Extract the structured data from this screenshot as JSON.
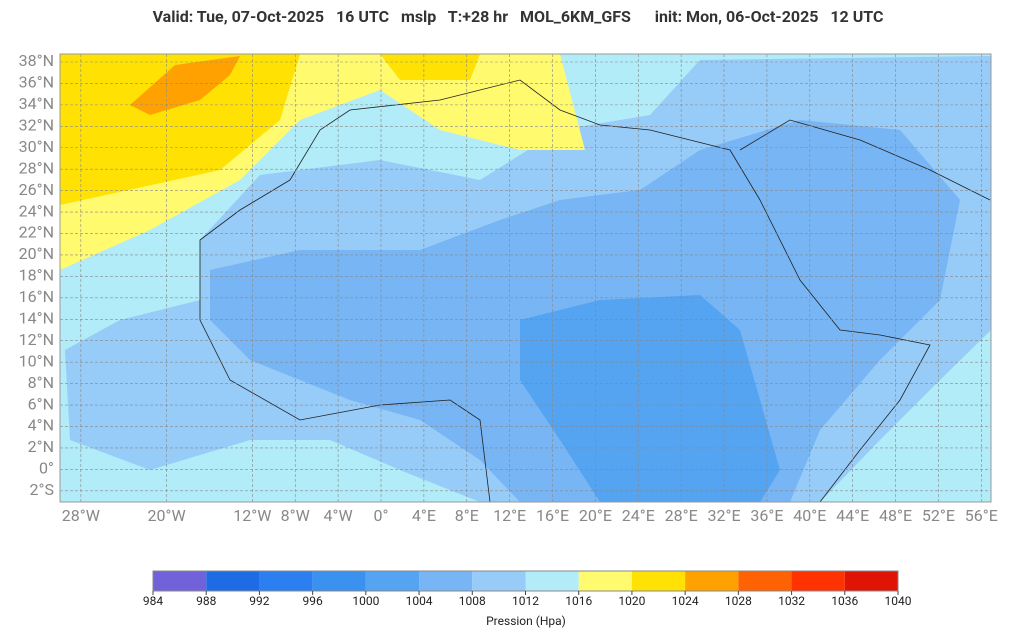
{
  "header": {
    "title": "Valid: Tue, 07-Oct-2025   16 UTC   mslp   T:+28 hr   MOL_6KM_GFS      init: Mon, 06-Oct-2025   12 UTC"
  },
  "map": {
    "lat_labels": [
      {
        "value": 38,
        "label": "38°N"
      },
      {
        "value": 36,
        "label": "36°N"
      },
      {
        "value": 34,
        "label": "34°N"
      },
      {
        "value": 32,
        "label": "32°N"
      },
      {
        "value": 30,
        "label": "30°N"
      },
      {
        "value": 28,
        "label": "28°N"
      },
      {
        "value": 26,
        "label": "26°N"
      },
      {
        "value": 24,
        "label": "24°N"
      },
      {
        "value": 22,
        "label": "22°N"
      },
      {
        "value": 20,
        "label": "20°N"
      },
      {
        "value": 18,
        "label": "18°N"
      },
      {
        "value": 16,
        "label": "16°N"
      },
      {
        "value": 14,
        "label": "14°N"
      },
      {
        "value": 12,
        "label": "12°N"
      },
      {
        "value": 10,
        "label": "10°N"
      },
      {
        "value": 8,
        "label": "8°N"
      },
      {
        "value": 6,
        "label": "6°N"
      },
      {
        "value": 4,
        "label": "4°N"
      },
      {
        "value": 2,
        "label": "2°N"
      },
      {
        "value": 0,
        "label": "0°"
      },
      {
        "value": -2,
        "label": "2°S"
      }
    ],
    "lon_labels": [
      {
        "value": -28,
        "label": "28°W"
      },
      {
        "value": -20,
        "label": "20°W"
      },
      {
        "value": -12,
        "label": "12°W"
      },
      {
        "value": -8,
        "label": "8°W"
      },
      {
        "value": -4,
        "label": "4°W"
      },
      {
        "value": 0,
        "label": "0°"
      },
      {
        "value": 4,
        "label": "4°E"
      },
      {
        "value": 8,
        "label": "8°E"
      },
      {
        "value": 12,
        "label": "12°E"
      },
      {
        "value": 16,
        "label": "16°E"
      },
      {
        "value": 20,
        "label": "20°E"
      },
      {
        "value": 24,
        "label": "24°E"
      },
      {
        "value": 28,
        "label": "28°E"
      },
      {
        "value": 32,
        "label": "32°E"
      },
      {
        "value": 36,
        "label": "36°E"
      },
      {
        "value": 40,
        "label": "40°E"
      },
      {
        "value": 44,
        "label": "44°E"
      },
      {
        "value": 48,
        "label": "48°E"
      },
      {
        "value": 52,
        "label": "52°E"
      },
      {
        "value": 56,
        "label": "56°E"
      }
    ]
  },
  "colorbar": {
    "ticks": [
      984,
      988,
      992,
      996,
      1000,
      1004,
      1008,
      1012,
      1016,
      1020,
      1024,
      1028,
      1032,
      1036,
      1040
    ],
    "colors": [
      "#7262da",
      "#1e6be6",
      "#2b7ff0",
      "#3b91f0",
      "#54a4f2",
      "#77b5f4",
      "#97cbf8",
      "#b1ecf8",
      "#fffa6e",
      "#ffe203",
      "#ffa201",
      "#ff6202",
      "#ff3202",
      "#e01404"
    ],
    "label": "Pression (Hpa)"
  }
}
